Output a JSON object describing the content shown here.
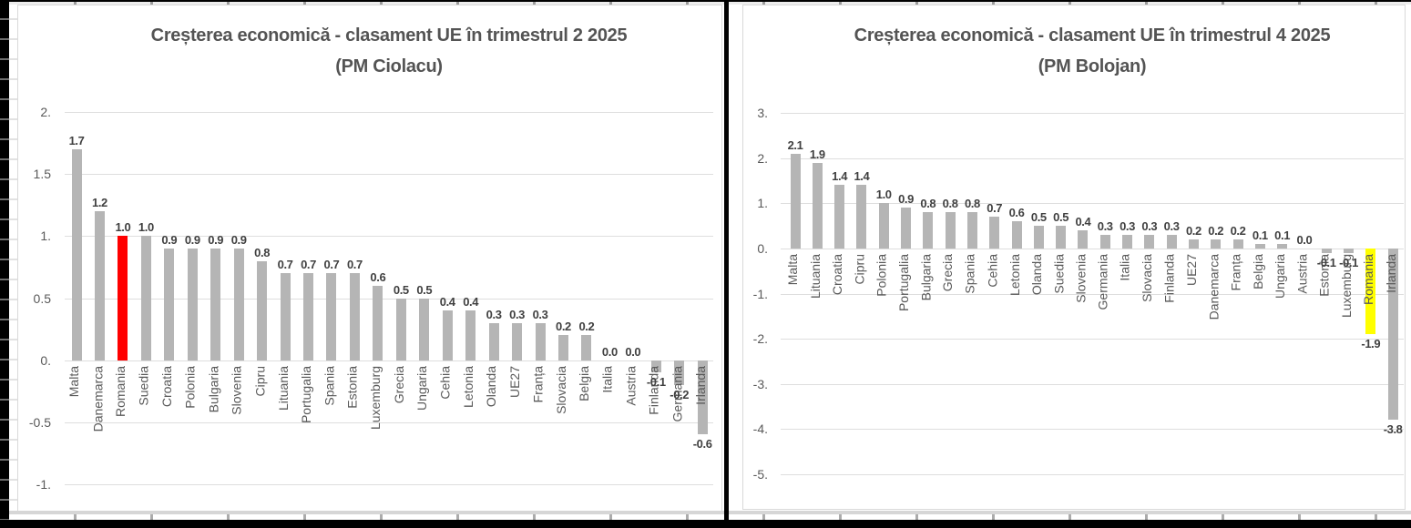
{
  "chart_data": [
    {
      "type": "bar",
      "title": "Creșterea economică - clasament UE în trimestrul 2 2025",
      "subtitle": "(PM Ciolacu)",
      "categories": [
        "Malta",
        "Danemarca",
        "Romania",
        "Suedia",
        "Croatia",
        "Polonia",
        "Bulgaria",
        "Slovenia",
        "Cipru",
        "Lituania",
        "Portugalia",
        "Spania",
        "Estonia",
        "Luxemburg",
        "Grecia",
        "Ungaria",
        "Cehia",
        "Letonia",
        "Olanda",
        "UE27",
        "Franța",
        "Slovacia",
        "Belgia",
        "Italia",
        "Austria",
        "Finlanda",
        "Germania",
        "Irlanda"
      ],
      "values": [
        1.7,
        1.2,
        1.0,
        1.0,
        0.9,
        0.9,
        0.9,
        0.9,
        0.8,
        0.7,
        0.7,
        0.7,
        0.7,
        0.6,
        0.5,
        0.5,
        0.4,
        0.4,
        0.3,
        0.3,
        0.3,
        0.2,
        0.2,
        0.0,
        0.0,
        -0.1,
        -0.2,
        -0.6
      ],
      "data_labels": [
        "1.7",
        "1.2",
        "1.0",
        "1.0",
        "0.9",
        "0.9",
        "0.9",
        "0.9",
        "0.8",
        "0.7",
        "0.7",
        "0.7",
        "0.7",
        "0.6",
        "0.5",
        "0.5",
        "0.4",
        "0.4",
        "0.3",
        "0.3",
        "0.3",
        "0.2",
        "0.2",
        "0.0",
        "0.0",
        "-0.1",
        "-0.2",
        "-0.6"
      ],
      "ylim": [
        -1,
        2
      ],
      "ytick_labels": [
        "2.",
        "1.5",
        "1.",
        "0.5",
        "0.",
        "-0.5",
        "-1."
      ],
      "ytick_values": [
        2,
        1.5,
        1,
        0.5,
        0,
        -0.5,
        -1
      ],
      "grid": true,
      "legend": "none",
      "bar_color": "#b5b5b5",
      "highlight": {
        "category": "Romania",
        "color": "#ff0000"
      }
    },
    {
      "type": "bar",
      "title": "Creșterea economică - clasament UE în trimestrul 4 2025",
      "subtitle": "(PM Bolojan)",
      "categories": [
        "Malta",
        "Lituania",
        "Croatia",
        "Cipru",
        "Polonia",
        "Portugalia",
        "Bulgaria",
        "Grecia",
        "Spania",
        "Cehia",
        "Letonia",
        "Olanda",
        "Suedia",
        "Slovenia",
        "Germania",
        "Italia",
        "Slovacia",
        "Finlanda",
        "UE27",
        "Danemarca",
        "Franța",
        "Belgia",
        "Ungaria",
        "Austria",
        "Estonia",
        "Luxemburg",
        "Romania",
        "Irlanda"
      ],
      "values": [
        2.1,
        1.9,
        1.4,
        1.4,
        1.0,
        0.9,
        0.8,
        0.8,
        0.8,
        0.7,
        0.6,
        0.5,
        0.5,
        0.4,
        0.3,
        0.3,
        0.3,
        0.3,
        0.2,
        0.2,
        0.2,
        0.1,
        0.1,
        0.0,
        -0.1,
        -0.1,
        -1.9,
        -3.8
      ],
      "data_labels": [
        "2.1",
        "1.9",
        "1.4",
        "1.4",
        "1.0",
        "0.9",
        "0.8",
        "0.8",
        "0.8",
        "0.7",
        "0.6",
        "0.5",
        "0.5",
        "0.4",
        "0.3",
        "0.3",
        "0.3",
        "0.3",
        "0.2",
        "0.2",
        "0.2",
        "0.1",
        "0.1",
        "0.0",
        "-0.1",
        "-0.1",
        "-1.9",
        "-3.8"
      ],
      "ylim": [
        -5,
        3
      ],
      "ytick_labels": [
        "3.",
        "2.",
        "1.",
        "0.",
        "-1.",
        "-2.",
        "-3.",
        "-4.",
        "-5."
      ],
      "ytick_values": [
        3,
        2,
        1,
        0,
        -1,
        -2,
        -3,
        -4,
        -5
      ],
      "grid": true,
      "legend": "none",
      "bar_color": "#b5b5b5",
      "highlight": {
        "category": "Romania",
        "color": "#ffff00"
      }
    }
  ]
}
